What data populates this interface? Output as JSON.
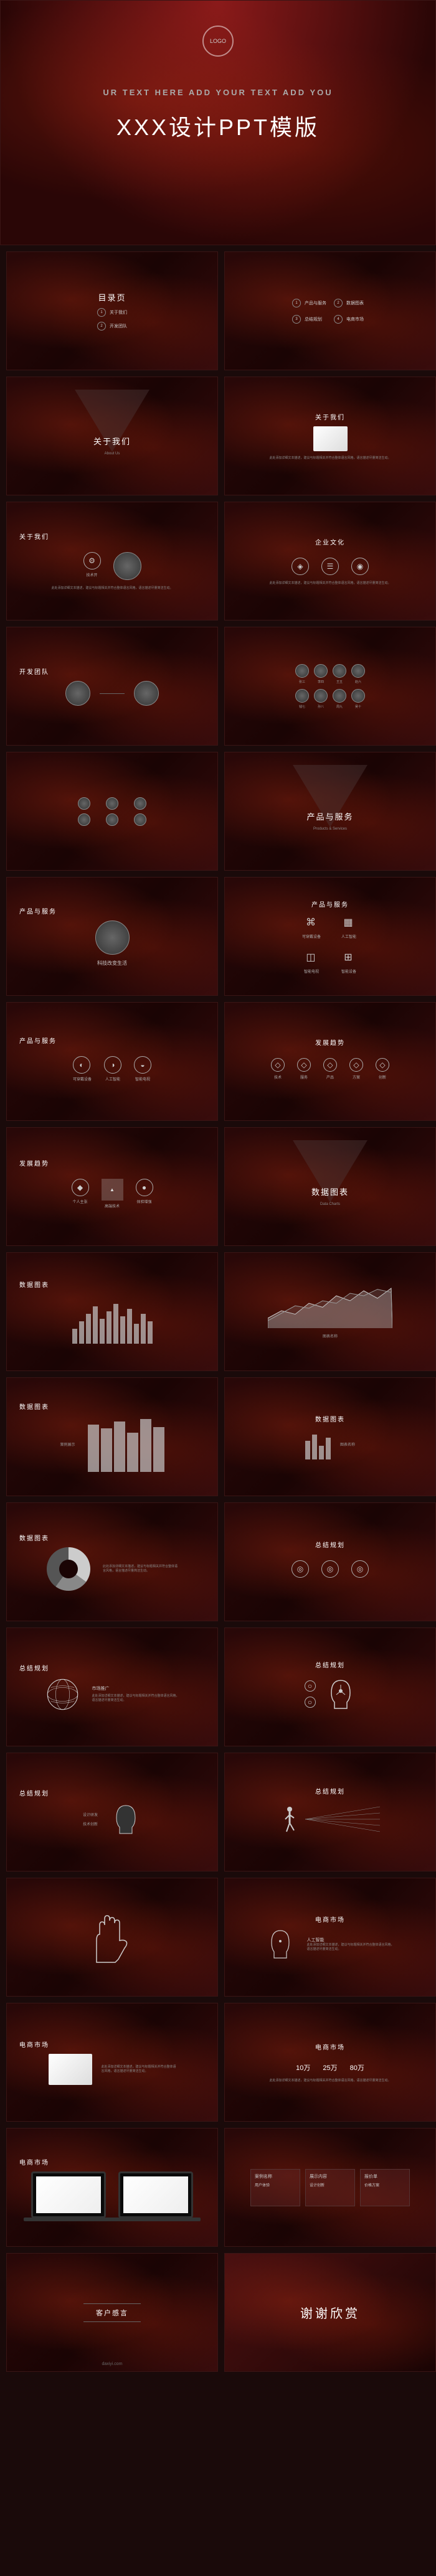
{
  "cover": {
    "logo": "LOGO",
    "banner": "UR TEXT HERE ADD YOUR TEXT ADD YOU",
    "title": "XXX设计PPT模版"
  },
  "toc": {
    "title": "目录页",
    "items": [
      "关于我们",
      "开发团队",
      "产品与服务",
      "总结规划",
      "数据图表",
      "电商市场"
    ]
  },
  "sections": {
    "about": {
      "title": "关于我们",
      "sub": "About Us",
      "items": [
        "技术开",
        "核心业务"
      ]
    },
    "culture": {
      "title": "企业文化",
      "sub": "Company Culture"
    },
    "team": {
      "title": "开发团队",
      "sub": "Development Team",
      "members": [
        "张三",
        "李四",
        "王五",
        "赵六",
        "钱七",
        "孙八",
        "周九",
        "吴十"
      ]
    },
    "products": {
      "title": "产品与服务",
      "sub": "Products & Services",
      "slogan": "科技改变生活",
      "items": [
        "可穿戴设备",
        "人工智能",
        "智能电视",
        "智能设备"
      ]
    },
    "trends": {
      "title": "发展趋势",
      "sub": "Development Trends",
      "items": [
        "个人主张",
        "高端技术",
        "体验增强"
      ],
      "features": [
        "技术",
        "服务",
        "产品",
        "方案",
        "创新"
      ]
    },
    "data": {
      "title": "数据图表",
      "sub": "Data Charts",
      "label1": "图表名称",
      "label2": "案例展示",
      "bars1": [
        30,
        45,
        60,
        75,
        50,
        65,
        80,
        55,
        70,
        40,
        60,
        45
      ],
      "bars2": [
        85,
        78,
        90,
        70,
        95,
        80
      ],
      "line1": [
        20,
        35,
        28,
        50,
        42,
        65,
        55,
        75,
        60,
        80
      ],
      "line2": [
        15,
        30,
        45,
        40,
        55,
        50,
        70,
        65,
        78,
        72
      ],
      "donut": {
        "a": 35,
        "b": 25,
        "c": 40
      }
    },
    "summary": {
      "title": "总结规划",
      "sub": "Summary Planning",
      "items": [
        "市场推广",
        "设计研发",
        "技术创新",
        "销售网络"
      ]
    },
    "ecommerce": {
      "title": "电商市场",
      "sub": "E-commerce Market",
      "ai": "人工智能",
      "stats": [
        "10万",
        "25万",
        "80万"
      ],
      "boxes": [
        {
          "t": "案例名称",
          "d": "用户体验"
        },
        {
          "t": "展示内容",
          "d": "设计创新"
        },
        {
          "t": "报价单",
          "d": "价格方案"
        }
      ]
    },
    "voice": {
      "title": "客户感言",
      "sub": "Customer Voice"
    },
    "thanks": "谢谢欣赏"
  },
  "watermark": "daxiyi.com",
  "colors": {
    "bg": "#1a0404",
    "accent": "#8b1a1a",
    "text": "#dddddd",
    "muted": "#888888",
    "bar": "#cccccc",
    "border": "#3a1515"
  },
  "placeholder_text": "此处添加详细文本描述，建议与标题相关并符合整体语言风格，语言描述尽量简洁生动。"
}
